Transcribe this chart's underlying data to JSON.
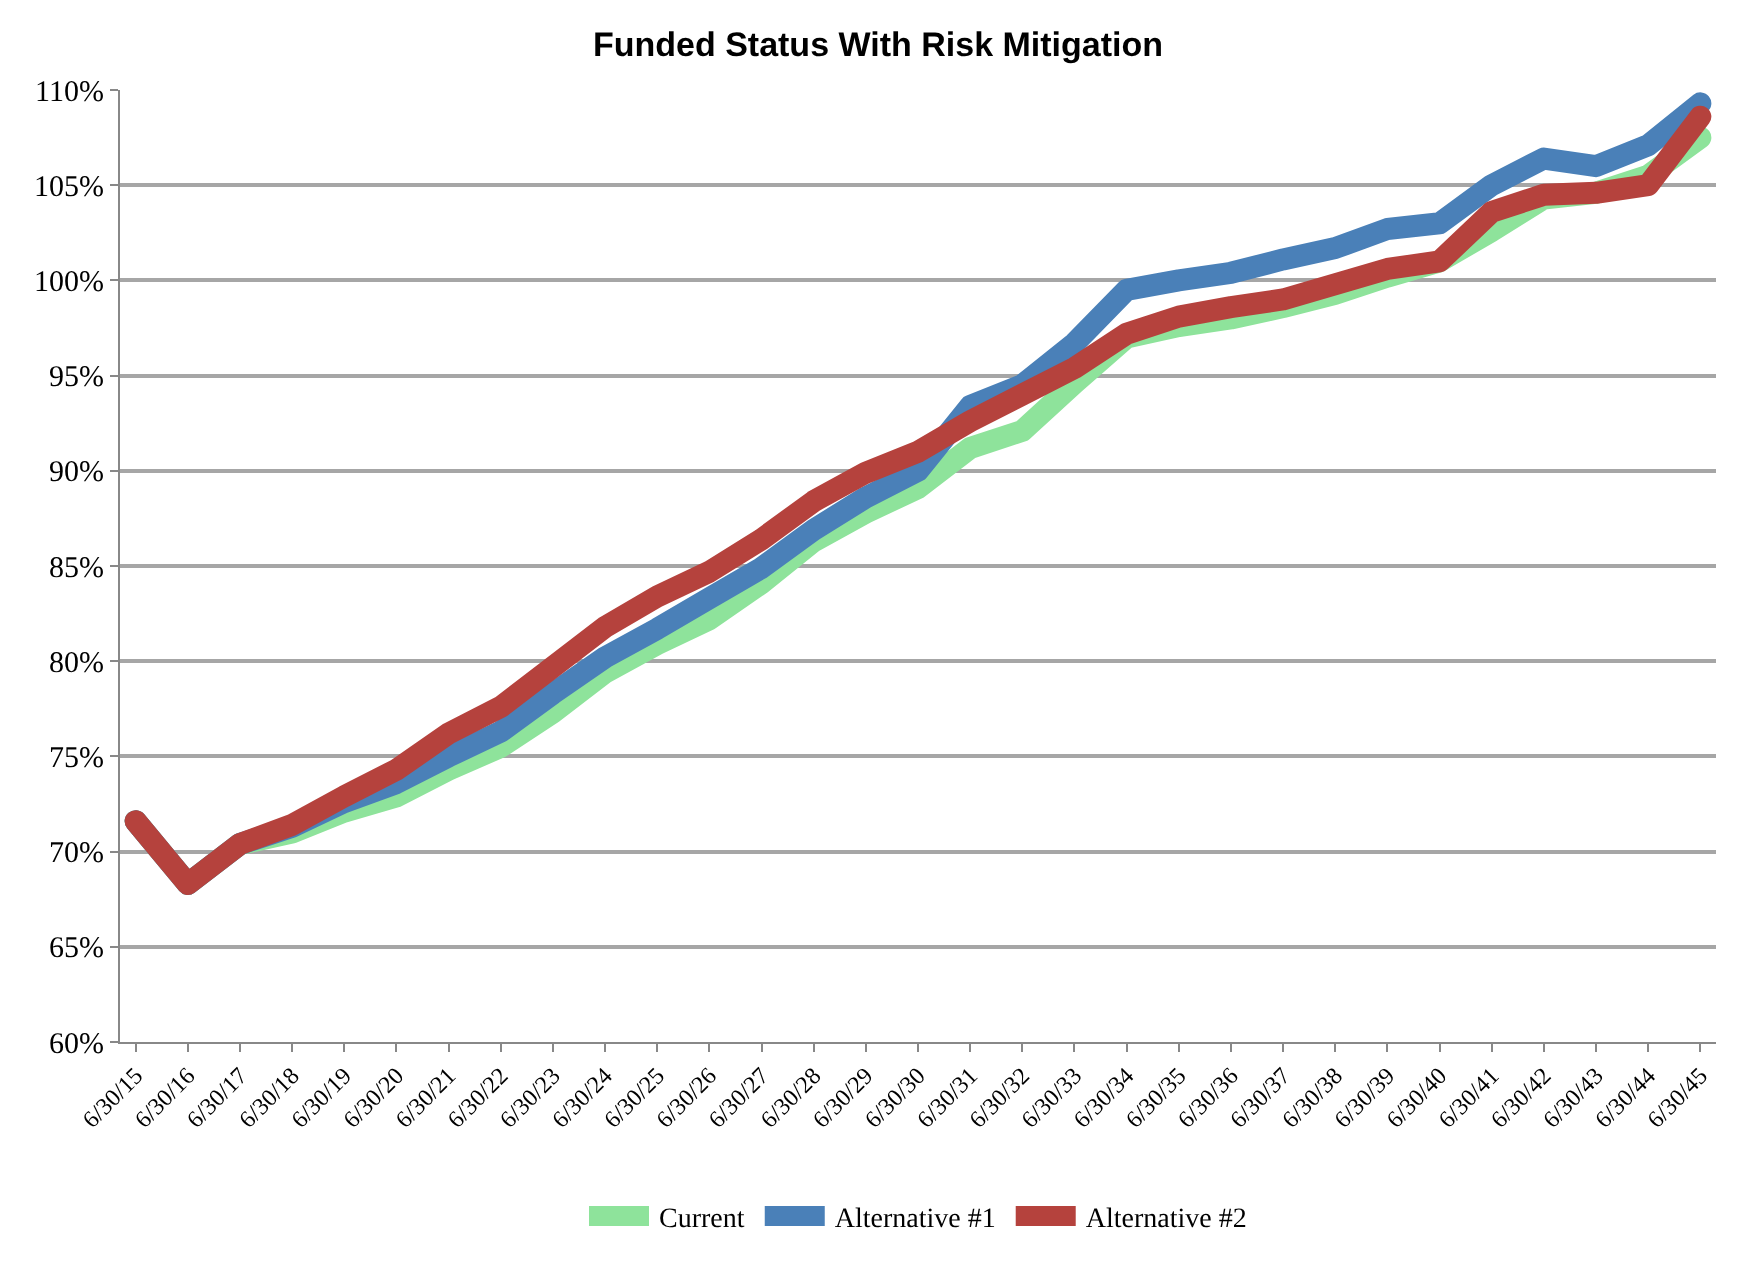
{
  "chart_data": {
    "type": "line",
    "title": "Funded Status With Risk Mitigation",
    "categories": [
      "6/30/15",
      "6/30/16",
      "6/30/17",
      "6/30/18",
      "6/30/19",
      "6/30/20",
      "6/30/21",
      "6/30/22",
      "6/30/23",
      "6/30/24",
      "6/30/25",
      "6/30/26",
      "6/30/27",
      "6/30/28",
      "6/30/29",
      "6/30/30",
      "6/30/31",
      "6/30/32",
      "6/30/33",
      "6/30/34",
      "6/30/35",
      "6/30/36",
      "6/30/37",
      "6/30/38",
      "6/30/39",
      "6/30/40",
      "6/30/41",
      "6/30/42",
      "6/30/43",
      "6/30/44",
      "6/30/45"
    ],
    "series": [
      {
        "name": "Current",
        "color": "#8ee39b",
        "values": [
          71.6,
          68.3,
          70.4,
          71.0,
          72.1,
          72.9,
          74.3,
          75.5,
          77.3,
          79.4,
          80.9,
          82.2,
          84.1,
          86.3,
          87.8,
          89.1,
          91.2,
          92.1,
          94.6,
          97.0,
          97.6,
          98.0,
          98.6,
          99.3,
          100.2,
          101.0,
          102.6,
          104.3,
          104.6,
          105.5,
          107.5
        ]
      },
      {
        "name": "Alternative #1",
        "color": "#4a80b8",
        "values": [
          71.6,
          68.3,
          70.4,
          71.3,
          72.6,
          73.6,
          75.0,
          76.3,
          78.3,
          80.2,
          81.7,
          83.3,
          84.9,
          86.9,
          88.6,
          90.0,
          93.4,
          94.5,
          96.7,
          99.5,
          100.0,
          100.4,
          101.1,
          101.7,
          102.7,
          103.0,
          105.0,
          106.4,
          106.0,
          107.1,
          109.3
        ]
      },
      {
        "name": "Alternative #2",
        "color": "#b5423d",
        "values": [
          71.6,
          68.3,
          70.4,
          71.4,
          72.9,
          74.3,
          76.2,
          77.6,
          79.7,
          81.8,
          83.4,
          84.7,
          86.4,
          88.4,
          89.9,
          91.0,
          92.6,
          94.0,
          95.4,
          97.2,
          98.1,
          98.6,
          99.0,
          99.8,
          100.6,
          101.0,
          103.6,
          104.5,
          104.6,
          105.0,
          108.6
        ]
      }
    ],
    "ylim": [
      60,
      110
    ],
    "yticks": [
      {
        "value": 60,
        "label": "60%"
      },
      {
        "value": 65,
        "label": "65%"
      },
      {
        "value": 70,
        "label": "70%"
      },
      {
        "value": 75,
        "label": "75%"
      },
      {
        "value": 80,
        "label": "80%"
      },
      {
        "value": 85,
        "label": "85%"
      },
      {
        "value": 90,
        "label": "90%"
      },
      {
        "value": 95,
        "label": "95%"
      },
      {
        "value": 100,
        "label": "100%"
      },
      {
        "value": 105,
        "label": "105%"
      },
      {
        "value": 110,
        "label": "110%"
      }
    ],
    "grid": "y",
    "legend": "bottom",
    "line_style": "solid"
  }
}
